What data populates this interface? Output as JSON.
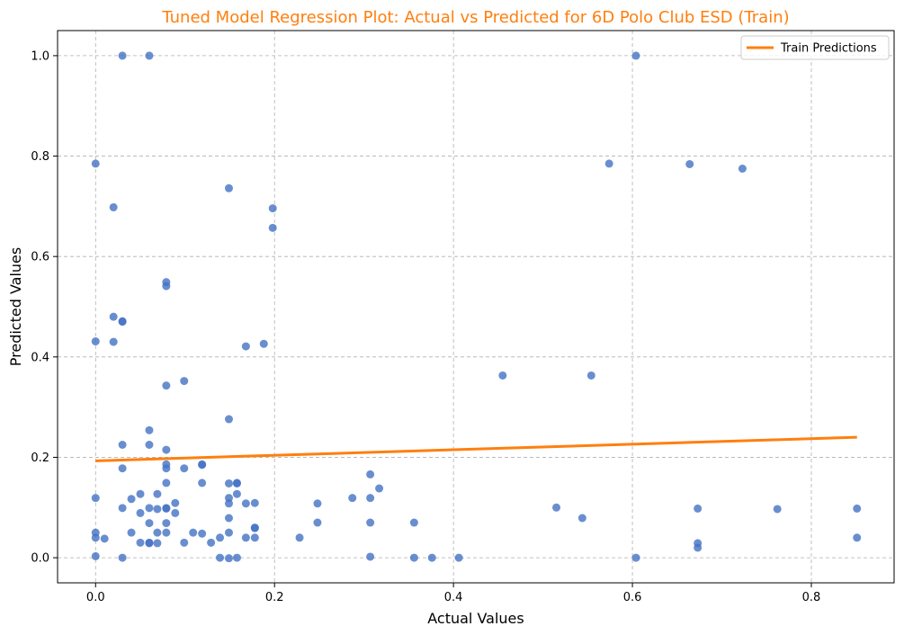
{
  "chart_data": {
    "type": "scatter",
    "title": "Tuned Model Regression Plot: Actual vs Predicted for 6D Polo Club ESD (Train)",
    "xlabel": "Actual Values",
    "ylabel": "Predicted Values",
    "xlim": [
      -0.0425,
      0.8925
    ],
    "ylim": [
      -0.05,
      1.05
    ],
    "xticks": [
      0.0,
      0.2,
      0.4,
      0.6,
      0.8
    ],
    "yticks": [
      0.0,
      0.2,
      0.4,
      0.6,
      0.8,
      1.0
    ],
    "xtick_labels": [
      "0.0",
      "0.2",
      "0.4",
      "0.6",
      "0.8"
    ],
    "ytick_labels": [
      "0.0",
      "0.2",
      "0.4",
      "0.6",
      "0.8",
      "1.0"
    ],
    "grid": true,
    "legend_position": "top-right",
    "colors": {
      "points": "#4472c4",
      "line": "#ff7f0e",
      "title": "#ff7f0e"
    },
    "points": [
      [
        0.03,
        1.0
      ],
      [
        0.06,
        1.0
      ],
      [
        0.604,
        1.0
      ],
      [
        0.0,
        0.785
      ],
      [
        0.574,
        0.785
      ],
      [
        0.664,
        0.784
      ],
      [
        0.723,
        0.775
      ],
      [
        0.149,
        0.736
      ],
      [
        0.02,
        0.698
      ],
      [
        0.198,
        0.696
      ],
      [
        0.198,
        0.657
      ],
      [
        0.079,
        0.549
      ],
      [
        0.079,
        0.541
      ],
      [
        0.02,
        0.48
      ],
      [
        0.03,
        0.471
      ],
      [
        0.03,
        0.47
      ],
      [
        0.0,
        0.431
      ],
      [
        0.02,
        0.43
      ],
      [
        0.168,
        0.421
      ],
      [
        0.188,
        0.426
      ],
      [
        0.455,
        0.363
      ],
      [
        0.554,
        0.363
      ],
      [
        0.099,
        0.352
      ],
      [
        0.079,
        0.343
      ],
      [
        0.149,
        0.276
      ],
      [
        0.06,
        0.254
      ],
      [
        0.03,
        0.225
      ],
      [
        0.06,
        0.225
      ],
      [
        0.079,
        0.215
      ],
      [
        0.079,
        0.186
      ],
      [
        0.119,
        0.186
      ],
      [
        0.119,
        0.185
      ],
      [
        0.03,
        0.178
      ],
      [
        0.079,
        0.178
      ],
      [
        0.099,
        0.178
      ],
      [
        0.307,
        0.166
      ],
      [
        0.149,
        0.148
      ],
      [
        0.119,
        0.149
      ],
      [
        0.079,
        0.149
      ],
      [
        0.158,
        0.149
      ],
      [
        0.158,
        0.148
      ],
      [
        0.317,
        0.138
      ],
      [
        0.05,
        0.127
      ],
      [
        0.069,
        0.127
      ],
      [
        0.158,
        0.127
      ],
      [
        0.0,
        0.119
      ],
      [
        0.04,
        0.117
      ],
      [
        0.149,
        0.119
      ],
      [
        0.287,
        0.119
      ],
      [
        0.307,
        0.119
      ],
      [
        0.248,
        0.108
      ],
      [
        0.178,
        0.109
      ],
      [
        0.149,
        0.108
      ],
      [
        0.168,
        0.108
      ],
      [
        0.089,
        0.109
      ],
      [
        0.515,
        0.1
      ],
      [
        0.673,
        0.098
      ],
      [
        0.762,
        0.097
      ],
      [
        0.851,
        0.098
      ],
      [
        0.03,
        0.099
      ],
      [
        0.06,
        0.099
      ],
      [
        0.069,
        0.097
      ],
      [
        0.079,
        0.099
      ],
      [
        0.079,
        0.098
      ],
      [
        0.05,
        0.089
      ],
      [
        0.089,
        0.089
      ],
      [
        0.149,
        0.079
      ],
      [
        0.544,
        0.079
      ],
      [
        0.06,
        0.069
      ],
      [
        0.079,
        0.069
      ],
      [
        0.248,
        0.07
      ],
      [
        0.307,
        0.07
      ],
      [
        0.356,
        0.07
      ],
      [
        0.178,
        0.06
      ],
      [
        0.178,
        0.059
      ],
      [
        0.0,
        0.05
      ],
      [
        0.04,
        0.05
      ],
      [
        0.069,
        0.05
      ],
      [
        0.079,
        0.05
      ],
      [
        0.109,
        0.05
      ],
      [
        0.119,
        0.048
      ],
      [
        0.149,
        0.05
      ],
      [
        0.0,
        0.04
      ],
      [
        0.01,
        0.038
      ],
      [
        0.139,
        0.04
      ],
      [
        0.168,
        0.04
      ],
      [
        0.178,
        0.04
      ],
      [
        0.228,
        0.04
      ],
      [
        0.851,
        0.04
      ],
      [
        0.05,
        0.03
      ],
      [
        0.06,
        0.03
      ],
      [
        0.06,
        0.029
      ],
      [
        0.069,
        0.029
      ],
      [
        0.099,
        0.03
      ],
      [
        0.129,
        0.03
      ],
      [
        0.673,
        0.029
      ],
      [
        0.673,
        0.02
      ],
      [
        0.0,
        0.003
      ],
      [
        0.03,
        0.0
      ],
      [
        0.139,
        0.0
      ],
      [
        0.149,
        -0.001
      ],
      [
        0.158,
        0.0
      ],
      [
        0.307,
        0.002
      ],
      [
        0.356,
        0.0
      ],
      [
        0.376,
        0.0
      ],
      [
        0.406,
        0.0
      ],
      [
        0.604,
        0.0
      ]
    ],
    "regression_line": {
      "name": "Train Predictions",
      "x": [
        0.0,
        0.851
      ],
      "y": [
        0.193,
        0.24
      ]
    }
  }
}
